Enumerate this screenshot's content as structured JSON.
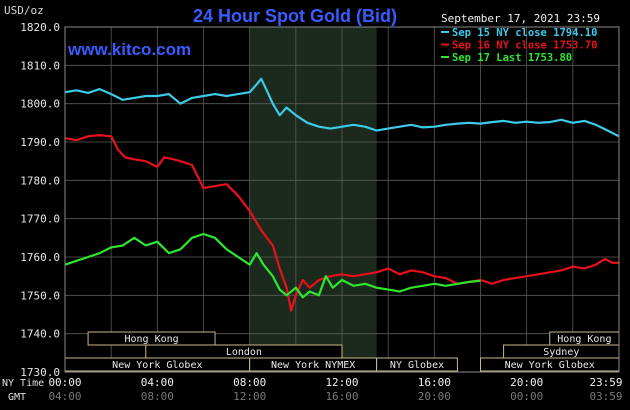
{
  "page": {
    "title": "24 Hour Spot Gold (Bid)",
    "unit": "USD/oz",
    "website": "www.kitco.com",
    "date": "September 17, 2021 23:59"
  },
  "legend": [
    {
      "label": "Sep 15 NY close 1794.10",
      "color": "#3ccbe8"
    },
    {
      "label": "Sep 16 NY close 1753.70",
      "color": "#e8101a"
    },
    {
      "label": "Sep 17 Last 1753.80",
      "color": "#2fe62f"
    }
  ],
  "sessions": [
    {
      "label": "Hong Kong",
      "start": 1.0,
      "end": 6.5,
      "row": 0
    },
    {
      "label": "Hong Kong",
      "start": 21.0,
      "end": 24.0,
      "row": 0
    },
    {
      "label": "London",
      "start": 3.5,
      "end": 12.0,
      "row": 1
    },
    {
      "label": "Sydney",
      "start": 19.0,
      "end": 24.0,
      "row": 1
    },
    {
      "label": "New York Globex",
      "start": 0.0,
      "end": 8.0,
      "row": 2
    },
    {
      "label": "New York NYMEX",
      "start": 8.0,
      "end": 13.5,
      "row": 2
    },
    {
      "label": "NY Globex",
      "start": 13.5,
      "end": 17.0,
      "row": 2
    },
    {
      "label": "New York Globex",
      "start": 18.0,
      "end": 24.0,
      "row": 2
    }
  ],
  "axis_labels": {
    "ny_time": "NY Time",
    "gmt": "GMT"
  },
  "gmt_ticks": [
    "04:00",
    "08:00",
    "12:00",
    "16:00",
    "20:00",
    "00:00",
    "03:59"
  ],
  "chart_data": {
    "type": "line",
    "ylim": [
      1730,
      1820
    ],
    "yticks": [
      1730,
      1740,
      1750,
      1760,
      1770,
      1780,
      1790,
      1800,
      1810,
      1820
    ],
    "ytick_labels": [
      "1730.0",
      "1740.0",
      "1750.0",
      "1760.0",
      "1770.0",
      "1780.0",
      "1790.0",
      "1800.0",
      "1810.0",
      "1820.0"
    ],
    "xlim": [
      0,
      24
    ],
    "xticks": [
      0,
      4,
      8,
      12,
      16,
      20,
      24
    ],
    "xtick_labels": [
      "00:00",
      "04:00",
      "08:00",
      "12:00",
      "16:00",
      "20:00",
      "23:59"
    ],
    "x_unit": "hours (NY time)",
    "highlight": {
      "start": 8.0,
      "end": 13.5
    },
    "grid": true,
    "series": [
      {
        "name": "Sep 15",
        "color": "#3ccbe8",
        "points": [
          [
            0,
            1803
          ],
          [
            0.5,
            1803.5
          ],
          [
            1.0,
            1802.8
          ],
          [
            1.5,
            1803.8
          ],
          [
            2.0,
            1802.5
          ],
          [
            2.5,
            1801
          ],
          [
            3.0,
            1801.5
          ],
          [
            3.5,
            1802
          ],
          [
            4.0,
            1802
          ],
          [
            4.5,
            1802.5
          ],
          [
            5.0,
            1800
          ],
          [
            5.5,
            1801.5
          ],
          [
            6.0,
            1802
          ],
          [
            6.5,
            1802.5
          ],
          [
            7.0,
            1802
          ],
          [
            7.5,
            1802.5
          ],
          [
            8.0,
            1803
          ],
          [
            8.3,
            1805
          ],
          [
            8.5,
            1806.5
          ],
          [
            8.7,
            1804
          ],
          [
            9.0,
            1800
          ],
          [
            9.3,
            1797
          ],
          [
            9.6,
            1799
          ],
          [
            10.0,
            1797
          ],
          [
            10.5,
            1795
          ],
          [
            11.0,
            1794
          ],
          [
            11.5,
            1793.5
          ],
          [
            12.0,
            1794
          ],
          [
            12.5,
            1794.5
          ],
          [
            13.0,
            1794
          ],
          [
            13.5,
            1793
          ],
          [
            14.0,
            1793.5
          ],
          [
            14.5,
            1794
          ],
          [
            15.0,
            1794.5
          ],
          [
            15.5,
            1793.8
          ],
          [
            16.0,
            1794
          ],
          [
            16.5,
            1794.5
          ],
          [
            17.0,
            1794.8
          ],
          [
            17.5,
            1795
          ],
          [
            18.0,
            1794.8
          ],
          [
            18.5,
            1795.2
          ],
          [
            19.0,
            1795.5
          ],
          [
            19.5,
            1795
          ],
          [
            20.0,
            1795.3
          ],
          [
            20.5,
            1795
          ],
          [
            21.0,
            1795.2
          ],
          [
            21.5,
            1795.8
          ],
          [
            22.0,
            1795
          ],
          [
            22.5,
            1795.5
          ],
          [
            23.0,
            1794.5
          ],
          [
            23.5,
            1793
          ],
          [
            24.0,
            1791.5
          ]
        ]
      },
      {
        "name": "Sep 16",
        "color": "#e8101a",
        "points": [
          [
            0,
            1791
          ],
          [
            0.5,
            1790.5
          ],
          [
            1.0,
            1791.5
          ],
          [
            1.5,
            1791.8
          ],
          [
            2.0,
            1791.5
          ],
          [
            2.3,
            1788
          ],
          [
            2.6,
            1786
          ],
          [
            3.0,
            1785.5
          ],
          [
            3.5,
            1785
          ],
          [
            4.0,
            1783.5
          ],
          [
            4.3,
            1786
          ],
          [
            4.7,
            1785.5
          ],
          [
            5.0,
            1785
          ],
          [
            5.5,
            1784
          ],
          [
            6.0,
            1778
          ],
          [
            6.5,
            1778.5
          ],
          [
            7.0,
            1779
          ],
          [
            7.5,
            1776
          ],
          [
            8.0,
            1772
          ],
          [
            8.5,
            1767
          ],
          [
            9.0,
            1763
          ],
          [
            9.3,
            1757
          ],
          [
            9.6,
            1752
          ],
          [
            9.8,
            1746
          ],
          [
            10.0,
            1750
          ],
          [
            10.3,
            1754
          ],
          [
            10.6,
            1752
          ],
          [
            11.0,
            1754
          ],
          [
            11.5,
            1755
          ],
          [
            12.0,
            1755.5
          ],
          [
            12.5,
            1755
          ],
          [
            13.0,
            1755.5
          ],
          [
            13.5,
            1756
          ],
          [
            14.0,
            1757
          ],
          [
            14.5,
            1755.5
          ],
          [
            15.0,
            1756.5
          ],
          [
            15.5,
            1756
          ],
          [
            16.0,
            1755
          ],
          [
            16.5,
            1754.5
          ],
          [
            17.0,
            1753
          ],
          [
            17.5,
            1753.5
          ],
          [
            18.0,
            1754
          ],
          [
            18.5,
            1753
          ],
          [
            19.0,
            1754
          ],
          [
            19.5,
            1754.5
          ],
          [
            20.0,
            1755
          ],
          [
            20.5,
            1755.5
          ],
          [
            21.0,
            1756
          ],
          [
            21.5,
            1756.5
          ],
          [
            22.0,
            1757.5
          ],
          [
            22.5,
            1757
          ],
          [
            23.0,
            1758
          ],
          [
            23.4,
            1759.5
          ],
          [
            23.7,
            1758.5
          ],
          [
            24.0,
            1758.5
          ]
        ]
      },
      {
        "name": "Sep 17",
        "color": "#2fe62f",
        "points": [
          [
            0,
            1758
          ],
          [
            0.5,
            1759
          ],
          [
            1.0,
            1760
          ],
          [
            1.5,
            1761
          ],
          [
            2.0,
            1762.5
          ],
          [
            2.5,
            1763
          ],
          [
            3.0,
            1765
          ],
          [
            3.5,
            1763
          ],
          [
            4.0,
            1764
          ],
          [
            4.5,
            1761
          ],
          [
            5.0,
            1762
          ],
          [
            5.5,
            1765
          ],
          [
            6.0,
            1766
          ],
          [
            6.5,
            1765
          ],
          [
            7.0,
            1762
          ],
          [
            7.5,
            1760
          ],
          [
            8.0,
            1758
          ],
          [
            8.3,
            1761
          ],
          [
            8.6,
            1758
          ],
          [
            9.0,
            1755
          ],
          [
            9.3,
            1751.5
          ],
          [
            9.6,
            1750
          ],
          [
            10.0,
            1752
          ],
          [
            10.3,
            1749.5
          ],
          [
            10.6,
            1751
          ],
          [
            11.0,
            1750
          ],
          [
            11.3,
            1755
          ],
          [
            11.6,
            1752
          ],
          [
            12.0,
            1754
          ],
          [
            12.5,
            1752.5
          ],
          [
            13.0,
            1753
          ],
          [
            13.5,
            1752
          ],
          [
            14.0,
            1751.5
          ],
          [
            14.5,
            1751
          ],
          [
            15.0,
            1752
          ],
          [
            15.5,
            1752.5
          ],
          [
            16.0,
            1753
          ],
          [
            16.5,
            1752.5
          ],
          [
            17.0,
            1753
          ],
          [
            17.5,
            1753.5
          ],
          [
            18.0,
            1753.8
          ]
        ]
      }
    ]
  }
}
